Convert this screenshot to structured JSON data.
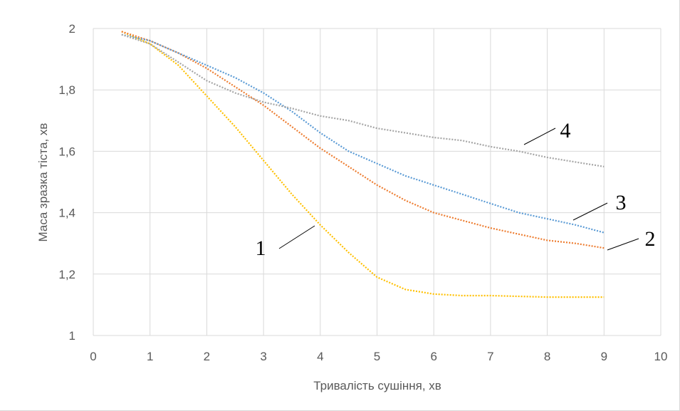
{
  "chart_data": {
    "type": "line",
    "title": "",
    "xlabel": "Тривалість сушіння, хв",
    "ylabel": "Маса зразка тіста, хв",
    "xlim": [
      0,
      10
    ],
    "ylim": [
      1,
      2
    ],
    "xticks": [
      "0",
      "1",
      "2",
      "3",
      "4",
      "5",
      "6",
      "7",
      "8",
      "9",
      "10"
    ],
    "yticks": [
      "1",
      "1,2",
      "1,4",
      "1,6",
      "1,8",
      "2"
    ],
    "grid": true,
    "legend": "none",
    "line_style": "dotted",
    "series": [
      {
        "name": "1",
        "color": "#ffc000",
        "points": [
          [
            0.5,
            1.99
          ],
          [
            1,
            1.95
          ],
          [
            1.5,
            1.88
          ],
          [
            2,
            1.78
          ],
          [
            2.5,
            1.68
          ],
          [
            3,
            1.57
          ],
          [
            3.5,
            1.46
          ],
          [
            4,
            1.36
          ],
          [
            4.5,
            1.27
          ],
          [
            5,
            1.19
          ],
          [
            5.5,
            1.15
          ],
          [
            6,
            1.135
          ],
          [
            6.5,
            1.13
          ],
          [
            7,
            1.13
          ],
          [
            8,
            1.125
          ],
          [
            9,
            1.125
          ]
        ]
      },
      {
        "name": "2",
        "color": "#ed7d31",
        "points": [
          [
            0.5,
            1.99
          ],
          [
            1,
            1.96
          ],
          [
            1.5,
            1.92
          ],
          [
            2,
            1.87
          ],
          [
            2.5,
            1.81
          ],
          [
            3,
            1.75
          ],
          [
            3.5,
            1.68
          ],
          [
            4,
            1.61
          ],
          [
            4.5,
            1.55
          ],
          [
            5,
            1.49
          ],
          [
            5.5,
            1.44
          ],
          [
            6,
            1.4
          ],
          [
            6.5,
            1.375
          ],
          [
            7,
            1.35
          ],
          [
            7.5,
            1.33
          ],
          [
            8,
            1.31
          ],
          [
            8.5,
            1.3
          ],
          [
            9,
            1.285
          ]
        ]
      },
      {
        "name": "3",
        "color": "#5b9bd5",
        "points": [
          [
            0.5,
            1.98
          ],
          [
            1,
            1.96
          ],
          [
            1.5,
            1.92
          ],
          [
            2,
            1.88
          ],
          [
            2.5,
            1.84
          ],
          [
            3,
            1.79
          ],
          [
            3.5,
            1.73
          ],
          [
            4,
            1.66
          ],
          [
            4.5,
            1.6
          ],
          [
            5,
            1.56
          ],
          [
            5.5,
            1.52
          ],
          [
            6,
            1.49
          ],
          [
            6.5,
            1.46
          ],
          [
            7,
            1.43
          ],
          [
            7.5,
            1.4
          ],
          [
            8,
            1.38
          ],
          [
            8.5,
            1.36
          ],
          [
            9,
            1.335
          ]
        ]
      },
      {
        "name": "4",
        "color": "#a5a5a5",
        "points": [
          [
            0.5,
            1.98
          ],
          [
            1,
            1.95
          ],
          [
            1.5,
            1.89
          ],
          [
            2,
            1.83
          ],
          [
            2.5,
            1.79
          ],
          [
            3,
            1.76
          ],
          [
            3.5,
            1.74
          ],
          [
            4,
            1.715
          ],
          [
            4.5,
            1.7
          ],
          [
            5,
            1.675
          ],
          [
            5.5,
            1.66
          ],
          [
            6,
            1.645
          ],
          [
            6.5,
            1.635
          ],
          [
            7,
            1.615
          ],
          [
            7.5,
            1.6
          ],
          [
            8,
            1.58
          ],
          [
            8.5,
            1.565
          ],
          [
            9,
            1.55
          ]
        ]
      }
    ],
    "annotations": [
      {
        "text": "1",
        "series": "1"
      },
      {
        "text": "2",
        "series": "2"
      },
      {
        "text": "3",
        "series": "3"
      },
      {
        "text": "4",
        "series": "4"
      }
    ]
  }
}
